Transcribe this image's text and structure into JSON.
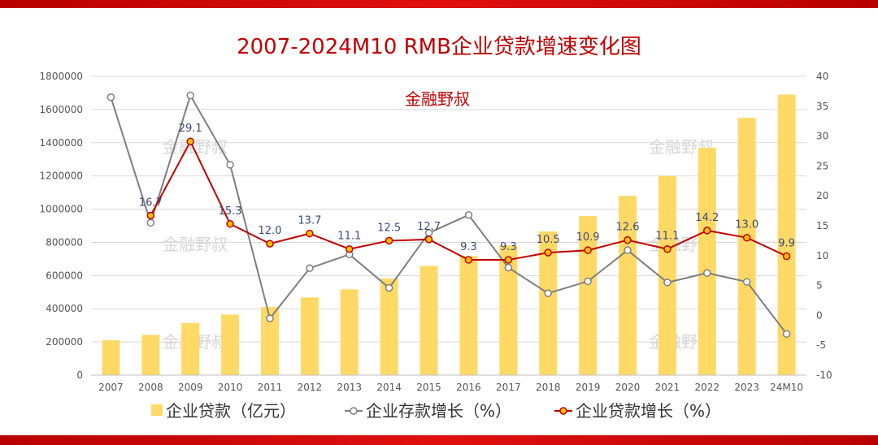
{
  "colors": {
    "bar": "#FFD966",
    "deposit_line": "#7F7F7F",
    "loan_line": "#C00000",
    "loan_marker_fill": "#FFC000",
    "title": "#C00000",
    "grid": "#D9D9D9"
  },
  "branding": {
    "author": "金融野叔",
    "watermark": "金融野叔"
  },
  "chart_data": {
    "type": "bar+line",
    "title": "2007-2024M10 RMB企业贷款增速变化图",
    "categories": [
      "2007",
      "2008",
      "2009",
      "2010",
      "2011",
      "2012",
      "2013",
      "2014",
      "2015",
      "2016",
      "2017",
      "2018",
      "2019",
      "2020",
      "2021",
      "2022",
      "2023",
      "24M10"
    ],
    "y_left": {
      "min": 0,
      "max": 1800000,
      "step": 200000,
      "ticks": [
        "0",
        "200000",
        "400000",
        "600000",
        "800000",
        "1000000",
        "1200000",
        "1400000",
        "1600000",
        "1800000"
      ]
    },
    "y_right": {
      "min": -10,
      "max": 40,
      "step": 5,
      "ticks": [
        "-10",
        "-5",
        "0",
        "5",
        "10",
        "15",
        "20",
        "25",
        "30",
        "35",
        "40"
      ]
    },
    "series": [
      {
        "name": "企业贷款（亿元）",
        "type": "bar",
        "axis": "left",
        "values": [
          210000,
          243000,
          314000,
          365000,
          410000,
          468000,
          517000,
          582000,
          658000,
          717000,
          782000,
          866000,
          958000,
          1080000,
          1200000,
          1370000,
          1550000,
          1690000
        ]
      },
      {
        "name": "企业存款增长（%）",
        "type": "line",
        "axis": "right",
        "values": [
          36.5,
          15.5,
          36.8,
          25.2,
          -0.5,
          7.9,
          10.2,
          4.6,
          13.8,
          16.8,
          8.0,
          3.7,
          5.7,
          10.9,
          5.5,
          7.1,
          5.6,
          -3.1
        ]
      },
      {
        "name": "企业贷款增长（%）",
        "type": "line",
        "axis": "right",
        "values": [
          null,
          16.7,
          29.1,
          15.3,
          12.0,
          13.7,
          11.1,
          12.5,
          12.7,
          9.3,
          9.3,
          10.5,
          10.9,
          12.6,
          11.1,
          14.2,
          13.0,
          9.9
        ],
        "labels": [
          "",
          "16.7",
          "29.1",
          "15.3",
          "12.0",
          "13.7",
          "11.1",
          "12.5",
          "12.7",
          "9.3",
          "9.3",
          "10.5",
          "10.9",
          "12.6",
          "11.1",
          "14.2",
          "13.0",
          "9.9"
        ]
      }
    ],
    "legend": [
      "企业贷款（亿元）",
      "企业存款增长（%）",
      "企业贷款增长（%）"
    ],
    "legend_position": "bottom",
    "grid": true
  }
}
